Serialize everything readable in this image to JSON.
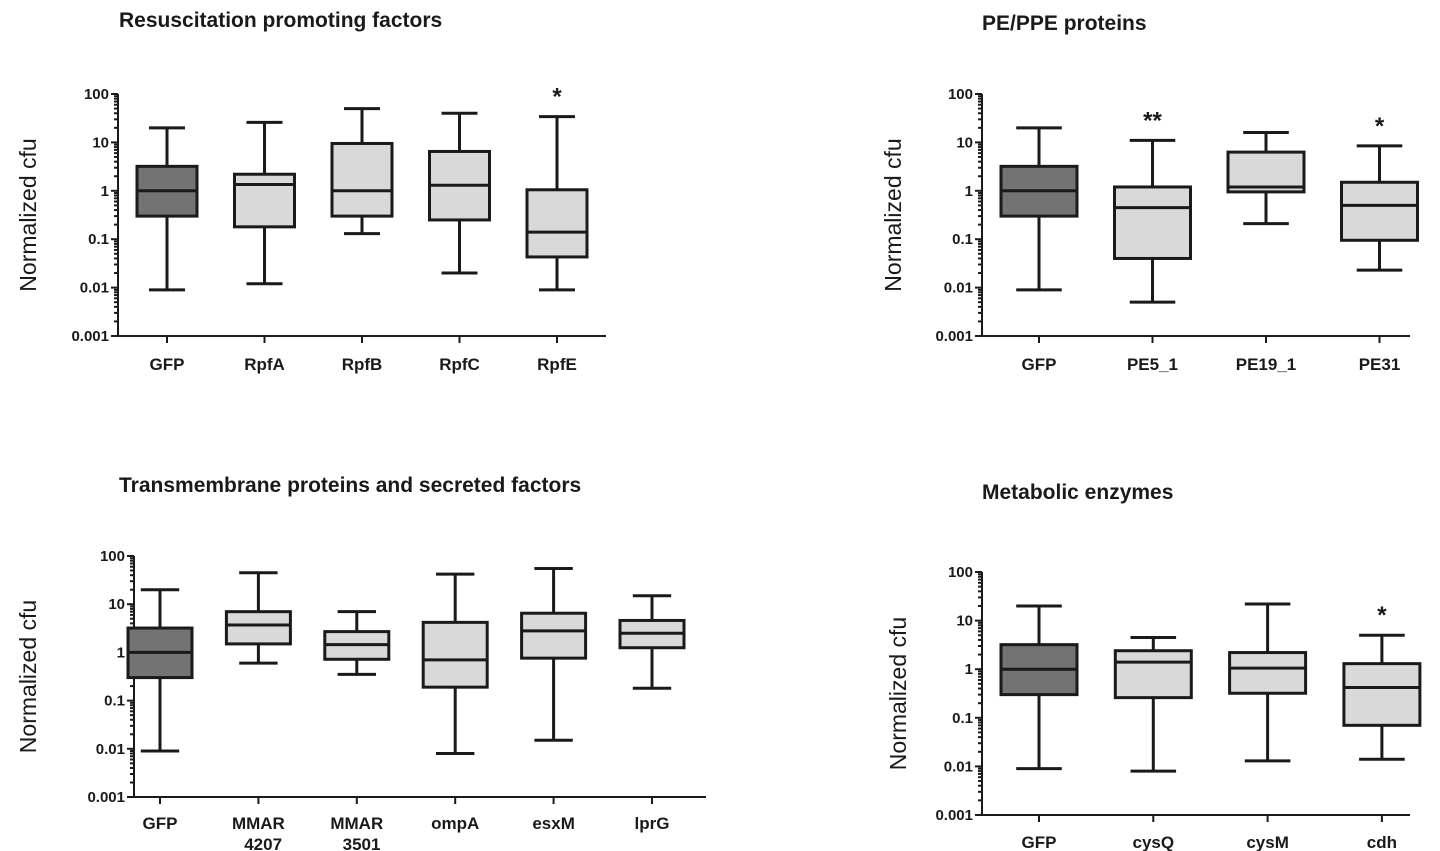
{
  "colors": {
    "control": "#737373",
    "treated": "#d9d9d9",
    "ink": "#1a1a1a"
  },
  "chart_data": [
    {
      "type": "box",
      "title": "Resuscitation promoting factors",
      "ylabel": "Normalized cfu",
      "yscale": "log",
      "ylim": [
        0.001,
        100
      ],
      "yticks": [
        "100",
        "10",
        "1",
        "0.1",
        "0.01",
        "0.001"
      ],
      "categories": [
        {
          "label": "GFP",
          "min": 0.009,
          "q1": 0.3,
          "median": 1.0,
          "q3": 3.2,
          "max": 20,
          "sig": "",
          "control": true
        },
        {
          "label": "RpfA",
          "min": 0.012,
          "q1": 0.18,
          "median": 1.35,
          "q3": 2.2,
          "max": 26,
          "sig": "",
          "control": false
        },
        {
          "label": "RpfB",
          "min": 0.13,
          "q1": 0.3,
          "median": 1.0,
          "q3": 9.5,
          "max": 50,
          "sig": "",
          "control": false
        },
        {
          "label": "RpfC",
          "min": 0.02,
          "q1": 0.25,
          "median": 1.3,
          "q3": 6.5,
          "max": 40,
          "sig": "",
          "control": false
        },
        {
          "label": "RpfE",
          "min": 0.009,
          "q1": 0.043,
          "median": 0.14,
          "q3": 1.05,
          "max": 34,
          "sig": "*",
          "control": false
        }
      ]
    },
    {
      "type": "box",
      "title": "PE/PPE proteins",
      "ylabel": "Normalized cfu",
      "yscale": "log",
      "ylim": [
        0.001,
        100
      ],
      "yticks": [
        "100",
        "10",
        "1",
        "0.1",
        "0.01",
        "0.001"
      ],
      "categories": [
        {
          "label": "GFP",
          "min": 0.009,
          "q1": 0.3,
          "median": 1.0,
          "q3": 3.2,
          "max": 20,
          "sig": "",
          "control": true
        },
        {
          "label": "PE5_1",
          "min": 0.005,
          "q1": 0.04,
          "median": 0.45,
          "q3": 1.2,
          "max": 11,
          "sig": "**",
          "control": false
        },
        {
          "label": "PE19_1",
          "min": 0.21,
          "q1": 0.95,
          "median": 1.2,
          "q3": 6.3,
          "max": 16,
          "sig": "",
          "control": false
        },
        {
          "label": "PE31",
          "min": 0.023,
          "q1": 0.095,
          "median": 0.5,
          "q3": 1.5,
          "max": 8.5,
          "sig": "*",
          "control": false
        }
      ]
    },
    {
      "type": "box",
      "title": "Transmembrane proteins and secreted factors",
      "ylabel": "Normalized cfu",
      "yscale": "log",
      "ylim": [
        0.001,
        100
      ],
      "yticks": [
        "100",
        "10",
        "1",
        "0.1",
        "0.01",
        "0.001"
      ],
      "categories": [
        {
          "label": "GFP",
          "min": 0.009,
          "q1": 0.3,
          "median": 1.0,
          "q3": 3.2,
          "max": 20,
          "sig": "",
          "control": true
        },
        {
          "label": "MMAR\n_4207",
          "min": 0.6,
          "q1": 1.5,
          "median": 3.7,
          "q3": 7.0,
          "max": 45,
          "sig": "",
          "control": false
        },
        {
          "label": "MMAR\n_3501",
          "min": 0.35,
          "q1": 0.72,
          "median": 1.45,
          "q3": 2.7,
          "max": 7.0,
          "sig": "",
          "control": false
        },
        {
          "label": "ompA",
          "min": 0.008,
          "q1": 0.19,
          "median": 0.7,
          "q3": 4.2,
          "max": 42,
          "sig": "",
          "control": false
        },
        {
          "label": "esxM",
          "min": 0.015,
          "q1": 0.76,
          "median": 2.8,
          "q3": 6.5,
          "max": 55,
          "sig": "",
          "control": false
        },
        {
          "label": "lprG",
          "min": 0.18,
          "q1": 1.25,
          "median": 2.5,
          "q3": 4.6,
          "max": 15,
          "sig": "",
          "control": false
        }
      ]
    },
    {
      "type": "box",
      "title": "Metabolic enzymes",
      "ylabel": "Normalized cfu",
      "yscale": "log",
      "ylim": [
        0.001,
        100
      ],
      "yticks": [
        "100",
        "10",
        "1",
        "0.1",
        "0.01",
        "0.001"
      ],
      "categories": [
        {
          "label": "GFP",
          "min": 0.009,
          "q1": 0.3,
          "median": 1.0,
          "q3": 3.2,
          "max": 20,
          "sig": "",
          "control": true
        },
        {
          "label": "cysQ",
          "min": 0.008,
          "q1": 0.26,
          "median": 1.4,
          "q3": 2.4,
          "max": 4.5,
          "sig": "",
          "control": false
        },
        {
          "label": "cysM",
          "min": 0.013,
          "q1": 0.32,
          "median": 1.05,
          "q3": 2.2,
          "max": 22,
          "sig": "",
          "control": false
        },
        {
          "label": "cdh",
          "min": 0.014,
          "q1": 0.07,
          "median": 0.42,
          "q3": 1.3,
          "max": 5.0,
          "sig": "*",
          "control": false
        }
      ]
    }
  ]
}
